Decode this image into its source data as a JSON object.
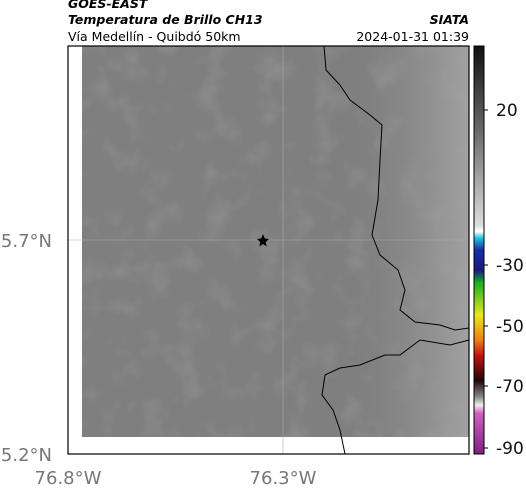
{
  "header": {
    "satellite": "GOES-EAST",
    "title": "Temperatura de Brillo CH13",
    "source": "SIATA",
    "subtitle": "Vía Medellín - Quibdó 50km",
    "timestamp": "2024-01-31 01:39"
  },
  "axes": {
    "lat_labels": [
      "5.7°N",
      "5.2°N"
    ],
    "lon_labels": [
      "76.8°W",
      "76.3°W"
    ]
  },
  "colorbar": {
    "ticks": [
      20,
      -30,
      -50,
      -70,
      -90
    ]
  }
}
